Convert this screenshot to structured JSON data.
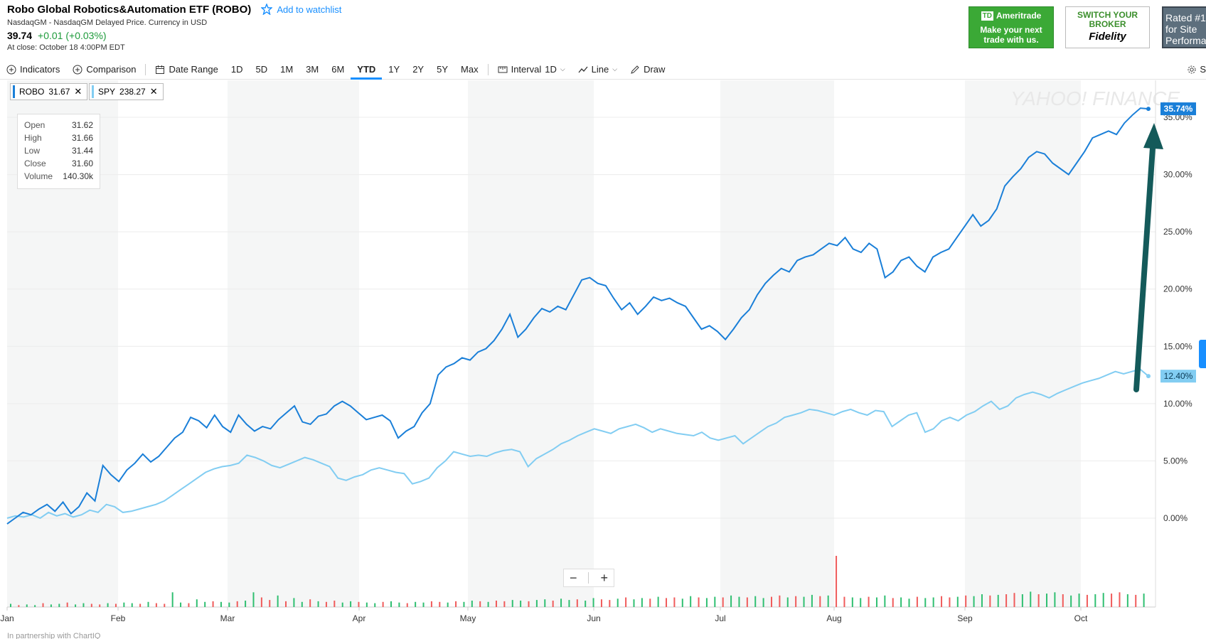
{
  "header": {
    "title": "Robo Global Robotics&Automation ETF (ROBO)",
    "watchlist_label": "Add to watchlist",
    "exchange": "NasdaqGM - NasdaqGM Delayed Price. Currency in USD",
    "price": "39.74",
    "change": "+0.01 (+0.03%)",
    "close_info": "At close: October 18 4:00PM EDT"
  },
  "ads": {
    "td_brand": "Ameritrade",
    "td_logo": "TD",
    "td_text": "Make your next trade with us.",
    "fidelity_text": "SWITCH YOUR BROKER",
    "fidelity_brand": "Fidelity",
    "rated_text": "Rated #1 for Site Performa"
  },
  "toolbar": {
    "indicators": "Indicators",
    "comparison": "Comparison",
    "date_range": "Date Range",
    "ranges": [
      "1D",
      "5D",
      "1M",
      "3M",
      "6M",
      "YTD",
      "1Y",
      "2Y",
      "5Y",
      "Max"
    ],
    "active_range": "YTD",
    "interval_label": "Interval",
    "interval_value": "1D",
    "line_label": "Line",
    "draw_label": "Draw",
    "settings_label": "S"
  },
  "legend_pills": [
    {
      "symbol": "ROBO",
      "value": "31.67",
      "color": "#1a7fd8"
    },
    {
      "symbol": "SPY",
      "value": "238.27",
      "color": "#82cdf2"
    }
  ],
  "ohlc": [
    {
      "label": "Open",
      "value": "31.62"
    },
    {
      "label": "High",
      "value": "31.66"
    },
    {
      "label": "Low",
      "value": "31.44"
    },
    {
      "label": "Close",
      "value": "31.60"
    },
    {
      "label": "Volume",
      "value": "140.30k"
    }
  ],
  "watermark": "YAHOO! FINANCE",
  "footer": "In partnership with ChartIQ",
  "chart_data": {
    "type": "line",
    "x_labels": [
      "Jan",
      "Feb",
      "Mar",
      "Apr",
      "May",
      "Jun",
      "Jul",
      "Aug",
      "Sep",
      "Oct"
    ],
    "y_ticks": [
      "0.00%",
      "5.00%",
      "10.00%",
      "15.00%",
      "20.00%",
      "25.00%",
      "30.00%",
      "35.00%"
    ],
    "ylim": [
      -4,
      38
    ],
    "y_unit": "%",
    "grid": true,
    "series": [
      {
        "name": "ROBO",
        "color": "#1a7fd8",
        "end_label": "35.74%",
        "values": [
          -0.5,
          0.0,
          0.5,
          0.3,
          0.8,
          1.2,
          0.6,
          1.4,
          0.4,
          1.0,
          2.2,
          1.5,
          4.6,
          3.8,
          3.2,
          4.2,
          4.8,
          5.6,
          4.9,
          5.4,
          6.2,
          7.0,
          7.5,
          8.8,
          8.5,
          7.9,
          9.0,
          8.0,
          7.5,
          9.0,
          8.2,
          7.6,
          8.0,
          7.8,
          8.6,
          9.2,
          9.8,
          8.4,
          8.2,
          8.9,
          9.1,
          9.8,
          10.2,
          9.8,
          9.2,
          8.6,
          8.8,
          9.0,
          8.5,
          7.0,
          7.6,
          8.0,
          9.2,
          10.0,
          12.5,
          13.2,
          13.5,
          14.0,
          13.8,
          14.5,
          14.8,
          15.5,
          16.5,
          17.8,
          15.8,
          16.5,
          17.5,
          18.3,
          18.0,
          18.5,
          18.2,
          19.5,
          20.8,
          21.0,
          20.5,
          20.3,
          19.2,
          18.2,
          18.8,
          17.8,
          18.5,
          19.3,
          19.0,
          19.2,
          18.8,
          18.5,
          17.5,
          16.5,
          16.8,
          16.3,
          15.6,
          16.5,
          17.5,
          18.2,
          19.5,
          20.5,
          21.2,
          21.8,
          21.5,
          22.5,
          22.8,
          23.0,
          23.5,
          24.0,
          23.8,
          24.5,
          23.5,
          23.2,
          24.0,
          23.5,
          21.0,
          21.5,
          22.5,
          22.8,
          22.0,
          21.5,
          22.8,
          23.2,
          23.5,
          24.5,
          25.5,
          26.5,
          25.5,
          26.0,
          27.0,
          29.0,
          29.8,
          30.5,
          31.5,
          32.0,
          31.8,
          31.0,
          30.5,
          30.0,
          31.0,
          32.0,
          33.2,
          33.5,
          33.8,
          33.5,
          34.5,
          35.2,
          35.8,
          35.74
        ]
      },
      {
        "name": "SPY",
        "color": "#82cdf2",
        "end_label": "12.40%",
        "values": [
          0.0,
          0.2,
          0.1,
          0.3,
          0.0,
          0.5,
          0.2,
          0.4,
          0.1,
          0.3,
          0.7,
          0.5,
          1.2,
          1.0,
          0.5,
          0.6,
          0.8,
          1.0,
          1.2,
          1.5,
          2.0,
          2.5,
          3.0,
          3.5,
          4.0,
          4.3,
          4.5,
          4.6,
          4.8,
          5.5,
          5.3,
          5.0,
          4.6,
          4.4,
          4.7,
          5.0,
          5.3,
          5.1,
          4.8,
          4.5,
          3.5,
          3.3,
          3.6,
          3.8,
          4.2,
          4.4,
          4.2,
          4.0,
          3.9,
          3.0,
          3.2,
          3.5,
          4.4,
          5.0,
          5.8,
          5.6,
          5.4,
          5.5,
          5.4,
          5.7,
          5.9,
          6.0,
          5.8,
          4.5,
          5.2,
          5.6,
          6.0,
          6.5,
          6.8,
          7.2,
          7.5,
          7.8,
          7.6,
          7.4,
          7.8,
          8.0,
          8.2,
          7.9,
          7.5,
          7.8,
          7.6,
          7.4,
          7.3,
          7.2,
          7.5,
          7.0,
          6.8,
          7.0,
          7.2,
          6.5,
          7.0,
          7.5,
          8.0,
          8.3,
          8.8,
          9.0,
          9.2,
          9.5,
          9.4,
          9.2,
          9.0,
          9.3,
          9.5,
          9.2,
          9.0,
          9.4,
          9.3,
          8.0,
          8.5,
          9.0,
          9.2,
          7.5,
          7.8,
          8.5,
          8.8,
          8.5,
          9.0,
          9.3,
          9.8,
          10.2,
          9.5,
          9.8,
          10.5,
          10.8,
          11.0,
          10.8,
          10.5,
          10.9,
          11.2,
          11.5,
          11.8,
          12.0,
          12.2,
          12.5,
          12.8,
          12.6,
          12.8,
          13.0,
          12.4
        ]
      }
    ],
    "volume": {
      "values": [
        0.5,
        0.3,
        0.4,
        0.3,
        0.6,
        0.4,
        0.5,
        0.7,
        0.4,
        0.6,
        0.5,
        0.4,
        0.6,
        0.5,
        0.7,
        0.6,
        0.5,
        0.8,
        0.6,
        0.5,
        2.3,
        0.7,
        0.6,
        1.2,
        0.8,
        0.9,
        0.8,
        0.7,
        0.9,
        1.0,
        2.3,
        1.5,
        1.1,
        1.8,
        0.9,
        1.4,
        0.8,
        1.2,
        0.9,
        0.8,
        1.0,
        0.7,
        0.9,
        0.8,
        0.7,
        0.6,
        0.8,
        0.9,
        0.7,
        0.6,
        0.8,
        0.7,
        0.9,
        0.8,
        0.7,
        0.9,
        0.8,
        1.0,
        0.9,
        0.8,
        1.0,
        0.9,
        1.1,
        1.0,
        0.9,
        1.1,
        1.2,
        1.0,
        1.3,
        1.1,
        1.2,
        1.0,
        1.4,
        1.2,
        1.1,
        1.3,
        1.5,
        1.2,
        1.4,
        1.3,
        1.6,
        1.4,
        1.5,
        1.3,
        1.7,
        1.5,
        1.4,
        1.6,
        1.5,
        1.8,
        1.6,
        1.5,
        1.7,
        1.4,
        1.6,
        1.8,
        1.5,
        1.7,
        1.6,
        1.9,
        1.7,
        1.8,
        8.0,
        1.6,
        1.5,
        1.4,
        1.6,
        1.5,
        1.8,
        1.4,
        1.5,
        1.3,
        1.6,
        1.4,
        1.5,
        1.7,
        1.5,
        1.6,
        1.8,
        1.7,
        2.0,
        1.8,
        1.9,
        2.0,
        2.2,
        2.0,
        2.4,
        2.0,
        2.1,
        2.3,
        2.0,
        1.8,
        2.1,
        1.9,
        2.0,
        2.2,
        2.1,
        2.3,
        2.0,
        1.9,
        2.1
      ],
      "up_color": "#2fbf71",
      "down_color": "#f05b5b"
    }
  }
}
